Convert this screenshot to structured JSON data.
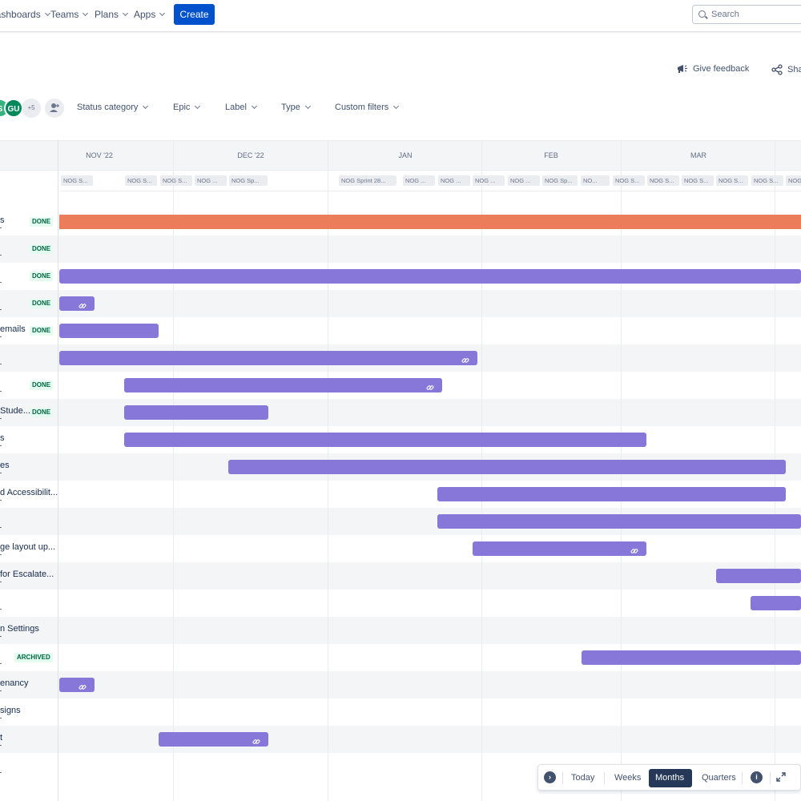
{
  "nav": {
    "items": [
      "Dashboards",
      "Teams",
      "Plans",
      "Apps"
    ],
    "create_label": "Create",
    "search_placeholder": "Search"
  },
  "header": {
    "feedback_label": "Give feedback",
    "share_label": "Share"
  },
  "filters": {
    "avatars": [
      {
        "initials": "S",
        "color": "#36b37e"
      },
      {
        "initials": "GU",
        "color": "#00875a"
      }
    ],
    "more_count": "+5",
    "dropdowns": [
      "Status category",
      "Epic",
      "Label",
      "Type",
      "Custom filters"
    ]
  },
  "timeline": {
    "months": [
      "NOV '22",
      "DEC '22",
      "JAN",
      "FEB",
      "MAR"
    ],
    "sprints": [
      "NOG S...",
      "NOG S...",
      "NOG S...",
      "NOG ...",
      "NOG Sp...",
      "NOG Sprint 28...",
      "NOG ...",
      "NOG ...",
      "NOG ...",
      "NOG ...",
      "NOG Sp...",
      "NO...",
      "NOG S...",
      "NOG S...",
      "NOG S...",
      "NOG S...",
      "NOG S...",
      "NOG"
    ],
    "rows": [
      {
        "label": "s",
        "status": "DONE"
      },
      {
        "label": "",
        "status": "DONE"
      },
      {
        "label": "",
        "status": "DONE"
      },
      {
        "label": "",
        "status": "DONE"
      },
      {
        "label": "emails",
        "status": "DONE"
      },
      {
        "label": "",
        "status": ""
      },
      {
        "label": "",
        "status": "DONE"
      },
      {
        "label": "Stude...",
        "status": "DONE"
      },
      {
        "label": "s",
        "status": ""
      },
      {
        "label": "es",
        "status": ""
      },
      {
        "label": "d Accessibilit...",
        "status": ""
      },
      {
        "label": "",
        "status": ""
      },
      {
        "label": "ge layout up...",
        "status": ""
      },
      {
        "label": "for Escalate...",
        "status": ""
      },
      {
        "label": "",
        "status": ""
      },
      {
        "label": "n Settings",
        "status": ""
      },
      {
        "label": "",
        "status": "ARCHIVED"
      },
      {
        "label": "enancy",
        "status": ""
      },
      {
        "label": "signs",
        "status": ""
      },
      {
        "label": "t",
        "status": ""
      },
      {
        "label": "",
        "status": ""
      }
    ]
  },
  "controls": {
    "today": "Today",
    "weeks": "Weeks",
    "months": "Months",
    "quarters": "Quarters",
    "active": "Months"
  },
  "colors": {
    "bar": "#8777d9",
    "bar_orange": "#eb7d5b",
    "primary": "#0052cc",
    "done": "#006644"
  }
}
